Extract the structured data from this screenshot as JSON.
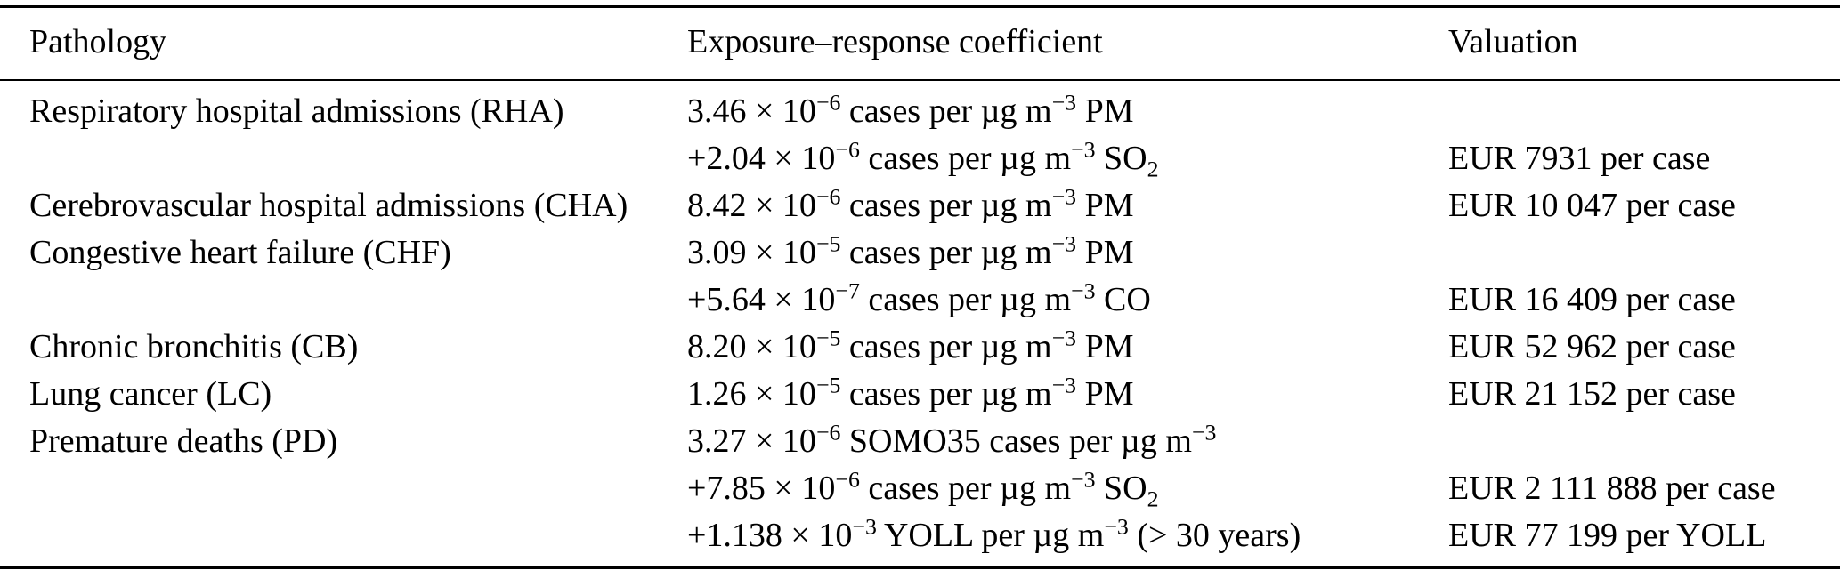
{
  "table": {
    "headers": [
      "Pathology",
      "Exposure–response coefficient",
      "Valuation"
    ],
    "rows": [
      {
        "pathology": "Respiratory hospital admissions (RHA)",
        "lines": [
          {
            "coefficient": [
              [
                "t",
                "3.46 × 10"
              ],
              [
                "sup",
                "−6"
              ],
              [
                "t",
                " cases per µg m"
              ],
              [
                "sup",
                "−3"
              ],
              [
                "t",
                " PM"
              ]
            ],
            "valuation": ""
          },
          {
            "coefficient": [
              [
                "t",
                "+2.04 × 10"
              ],
              [
                "sup",
                "−6"
              ],
              [
                "t",
                " cases per µg m"
              ],
              [
                "sup",
                "−3"
              ],
              [
                "t",
                " SO"
              ],
              [
                "sub",
                "2"
              ]
            ],
            "valuation": "EUR 7931 per case"
          }
        ]
      },
      {
        "pathology": "Cerebrovascular hospital admissions (CHA)",
        "lines": [
          {
            "coefficient": [
              [
                "t",
                "8.42 × 10"
              ],
              [
                "sup",
                "−6"
              ],
              [
                "t",
                " cases per µg m"
              ],
              [
                "sup",
                "−3"
              ],
              [
                "t",
                " PM"
              ]
            ],
            "valuation": "EUR 10 047 per case"
          }
        ]
      },
      {
        "pathology": "Congestive heart failure (CHF)",
        "lines": [
          {
            "coefficient": [
              [
                "t",
                "3.09 × 10"
              ],
              [
                "sup",
                "−5"
              ],
              [
                "t",
                " cases per µg m"
              ],
              [
                "sup",
                "−3"
              ],
              [
                "t",
                " PM"
              ]
            ],
            "valuation": ""
          },
          {
            "coefficient": [
              [
                "t",
                "+5.64 × 10"
              ],
              [
                "sup",
                "−7"
              ],
              [
                "t",
                " cases per µg m"
              ],
              [
                "sup",
                "−3"
              ],
              [
                "t",
                " CO"
              ]
            ],
            "valuation": "EUR 16 409 per case"
          }
        ]
      },
      {
        "pathology": "Chronic bronchitis (CB)",
        "lines": [
          {
            "coefficient": [
              [
                "t",
                "8.20 × 10"
              ],
              [
                "sup",
                "−5"
              ],
              [
                "t",
                " cases per µg m"
              ],
              [
                "sup",
                "−3"
              ],
              [
                "t",
                " PM"
              ]
            ],
            "valuation": "EUR 52 962 per case"
          }
        ]
      },
      {
        "pathology": "Lung cancer (LC)",
        "lines": [
          {
            "coefficient": [
              [
                "t",
                "1.26 × 10"
              ],
              [
                "sup",
                "−5"
              ],
              [
                "t",
                " cases per µg m"
              ],
              [
                "sup",
                "−3"
              ],
              [
                "t",
                " PM"
              ]
            ],
            "valuation": "EUR 21 152 per case"
          }
        ]
      },
      {
        "pathology": "Premature deaths (PD)",
        "lines": [
          {
            "coefficient": [
              [
                "t",
                "3.27 × 10"
              ],
              [
                "sup",
                "−6"
              ],
              [
                "t",
                " SOMO35 cases per µg m"
              ],
              [
                "sup",
                "−3"
              ]
            ],
            "valuation": ""
          },
          {
            "coefficient": [
              [
                "t",
                "+7.85 × 10"
              ],
              [
                "sup",
                "−6"
              ],
              [
                "t",
                " cases per µg m"
              ],
              [
                "sup",
                "−3"
              ],
              [
                "t",
                " SO"
              ],
              [
                "sub",
                "2"
              ]
            ],
            "valuation": "EUR 2 111 888 per case"
          },
          {
            "coefficient": [
              [
                "t",
                "+1.138 × 10"
              ],
              [
                "sup",
                "−3"
              ],
              [
                "t",
                " YOLL per µg m"
              ],
              [
                "sup",
                "−3"
              ],
              [
                "t",
                " (> 30 years)"
              ]
            ],
            "valuation": "EUR 77 199 per YOLL"
          }
        ]
      }
    ]
  }
}
